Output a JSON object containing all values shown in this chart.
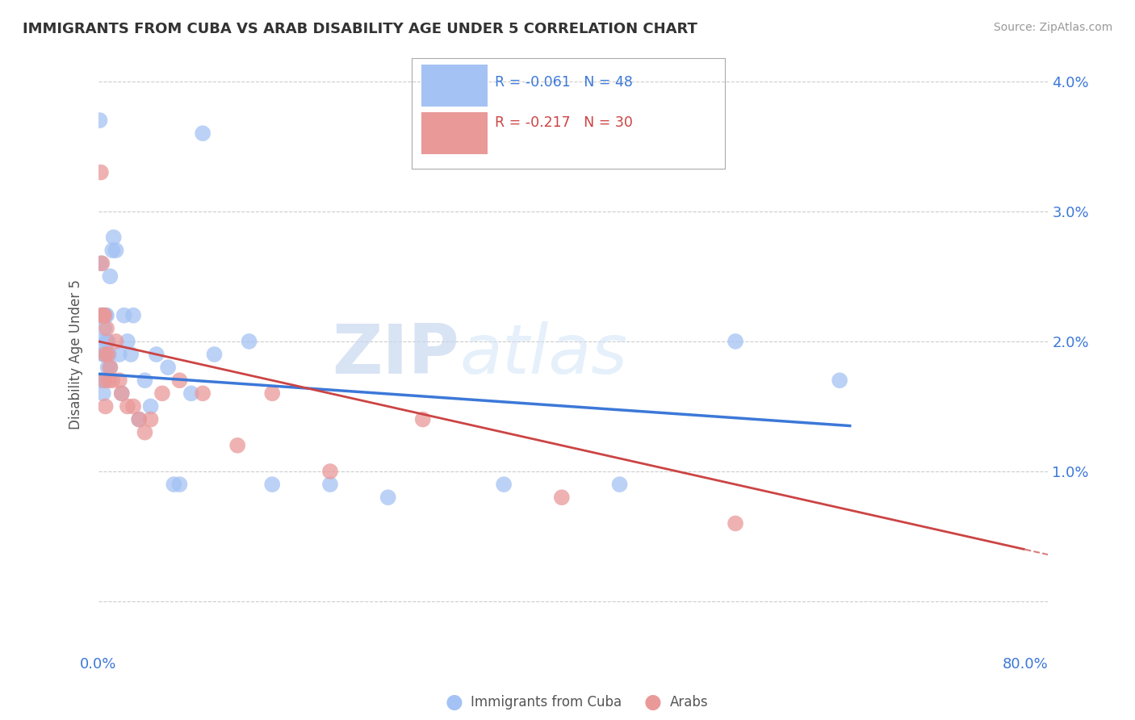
{
  "title": "IMMIGRANTS FROM CUBA VS ARAB DISABILITY AGE UNDER 5 CORRELATION CHART",
  "source": "Source: ZipAtlas.com",
  "ylabel": "Disability Age Under 5",
  "footer_blue": "Immigrants from Cuba",
  "footer_pink": "Arabs",
  "blue_color": "#a4c2f4",
  "pink_color": "#ea9999",
  "blue_line_color": "#3c78d8",
  "pink_line_color": "#cc4444",
  "background_color": "#ffffff",
  "grid_color": "#cccccc",
  "watermark_zip": "ZIP",
  "watermark_atlas": "atlas",
  "legend_blue_r": "R = -0.061",
  "legend_blue_n": "N = 48",
  "legend_pink_r": "R = -0.217",
  "legend_pink_n": "N = 30",
  "blue_x": [
    0.001,
    0.002,
    0.002,
    0.003,
    0.003,
    0.003,
    0.004,
    0.004,
    0.004,
    0.005,
    0.005,
    0.005,
    0.006,
    0.006,
    0.007,
    0.007,
    0.008,
    0.008,
    0.009,
    0.01,
    0.01,
    0.012,
    0.013,
    0.015,
    0.018,
    0.02,
    0.022,
    0.025,
    0.028,
    0.03,
    0.035,
    0.04,
    0.045,
    0.05,
    0.06,
    0.065,
    0.07,
    0.08,
    0.09,
    0.1,
    0.13,
    0.15,
    0.2,
    0.25,
    0.35,
    0.45,
    0.55,
    0.64
  ],
  "blue_y": [
    0.037,
    0.026,
    0.022,
    0.022,
    0.02,
    0.017,
    0.022,
    0.019,
    0.016,
    0.021,
    0.019,
    0.017,
    0.022,
    0.019,
    0.022,
    0.02,
    0.02,
    0.018,
    0.019,
    0.025,
    0.018,
    0.027,
    0.028,
    0.027,
    0.019,
    0.016,
    0.022,
    0.02,
    0.019,
    0.022,
    0.014,
    0.017,
    0.015,
    0.019,
    0.018,
    0.009,
    0.009,
    0.016,
    0.036,
    0.019,
    0.02,
    0.009,
    0.009,
    0.008,
    0.009,
    0.009,
    0.02,
    0.017
  ],
  "pink_x": [
    0.002,
    0.003,
    0.003,
    0.004,
    0.005,
    0.005,
    0.006,
    0.006,
    0.007,
    0.008,
    0.009,
    0.01,
    0.012,
    0.015,
    0.018,
    0.02,
    0.025,
    0.03,
    0.035,
    0.04,
    0.045,
    0.055,
    0.07,
    0.09,
    0.12,
    0.15,
    0.2,
    0.28,
    0.4,
    0.55
  ],
  "pink_y": [
    0.033,
    0.026,
    0.022,
    0.022,
    0.022,
    0.017,
    0.019,
    0.015,
    0.021,
    0.019,
    0.017,
    0.018,
    0.017,
    0.02,
    0.017,
    0.016,
    0.015,
    0.015,
    0.014,
    0.013,
    0.014,
    0.016,
    0.017,
    0.016,
    0.012,
    0.016,
    0.01,
    0.014,
    0.008,
    0.006
  ],
  "blue_trend_x": [
    0.0,
    0.65
  ],
  "blue_trend_y": [
    0.0175,
    0.0135
  ],
  "pink_trend_x": [
    0.0,
    0.8
  ],
  "pink_trend_y": [
    0.02,
    0.004
  ],
  "xlim": [
    0.0,
    0.82
  ],
  "ylim": [
    -0.004,
    0.042
  ],
  "y_ticks": [
    0.0,
    0.01,
    0.02,
    0.03,
    0.04
  ],
  "y_tick_labels": [
    "",
    "1.0%",
    "2.0%",
    "3.0%",
    "4.0%"
  ]
}
